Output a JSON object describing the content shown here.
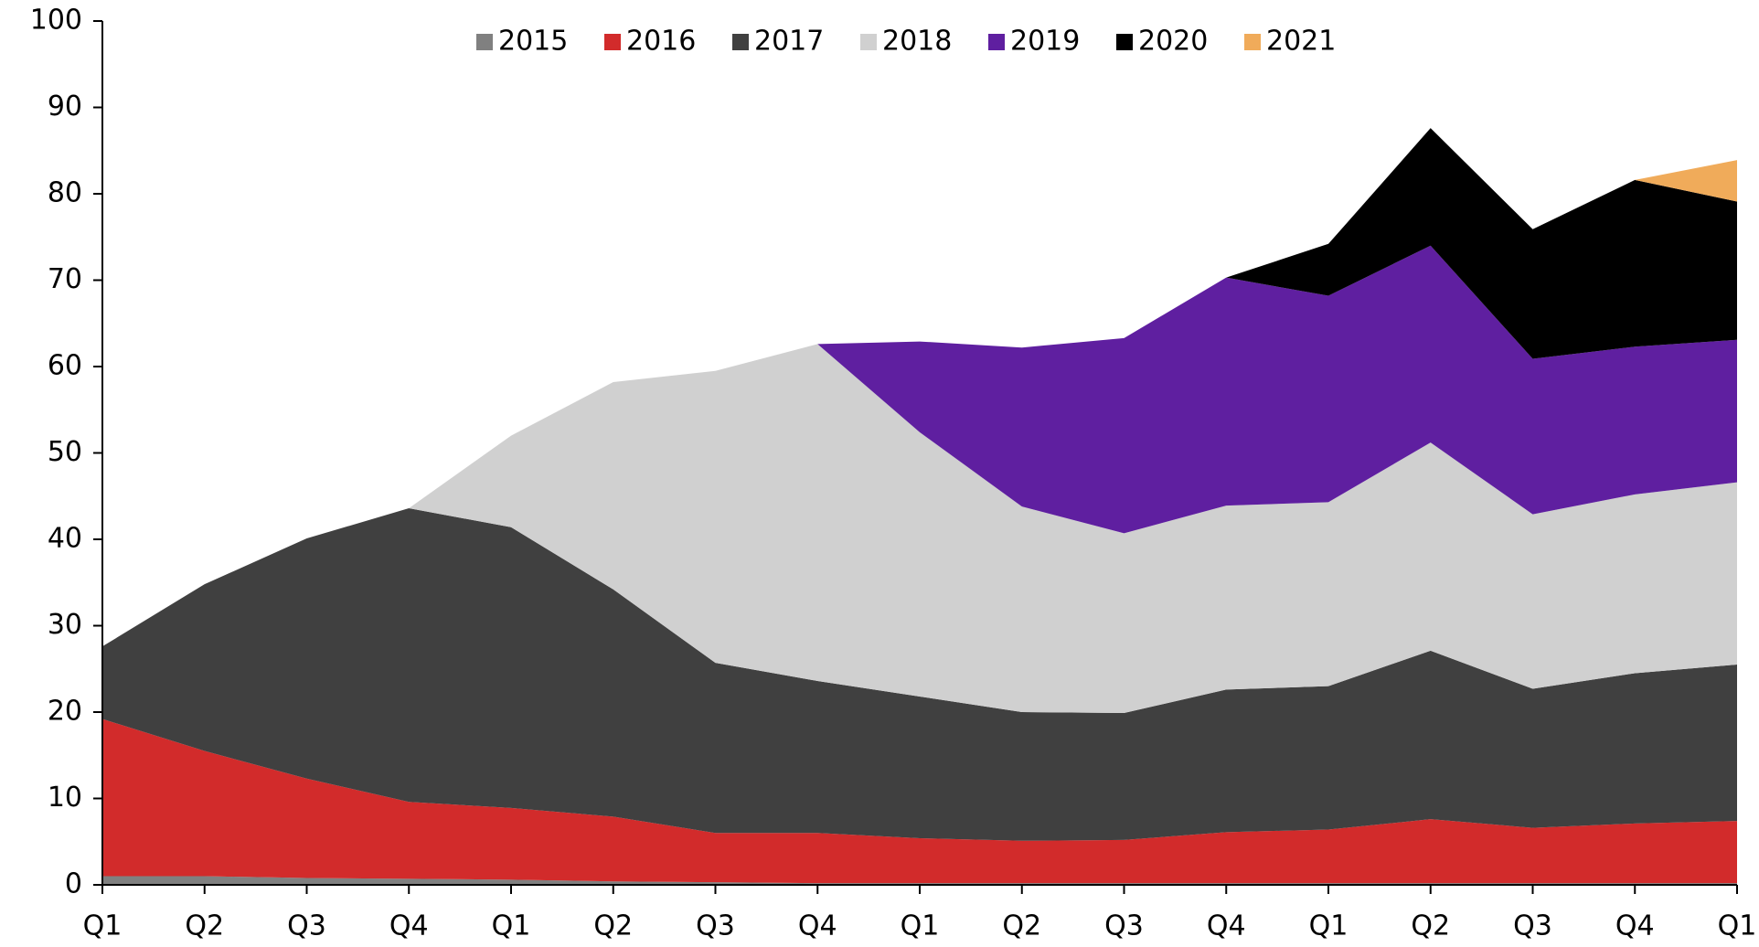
{
  "chart_data": {
    "type": "stacked-area",
    "categories": [
      "Q1",
      "Q2",
      "Q3",
      "Q4",
      "Q1",
      "Q2",
      "Q3",
      "Q4",
      "Q1",
      "Q2",
      "Q3",
      "Q4",
      "Q1",
      "Q2",
      "Q3",
      "Q4",
      "Q1"
    ],
    "series": [
      {
        "name": "2015",
        "color": "#808080",
        "values": [
          1.0,
          1.0,
          0.8,
          0.7,
          0.6,
          0.4,
          0.3,
          0.2,
          0.2,
          0.2,
          0.2,
          0.2,
          0.2,
          0.2,
          0.2,
          0.2,
          0.2
        ]
      },
      {
        "name": "2016",
        "color": "#d22b2b",
        "values": [
          18.2,
          14.5,
          11.5,
          8.9,
          8.3,
          7.5,
          5.7,
          5.8,
          5.2,
          4.9,
          5.0,
          5.9,
          6.2,
          7.4,
          6.4,
          6.9,
          7.2
        ]
      },
      {
        "name": "2017",
        "color": "#404040",
        "values": [
          8.4,
          19.3,
          27.8,
          34.0,
          32.5,
          26.3,
          19.7,
          17.6,
          16.4,
          14.9,
          14.7,
          16.5,
          16.6,
          19.5,
          16.1,
          17.4,
          18.1
        ]
      },
      {
        "name": "2018",
        "color": "#d0d0d0",
        "values": [
          0,
          0,
          0,
          0,
          10.6,
          24.0,
          33.8,
          39.0,
          30.6,
          23.8,
          20.8,
          21.3,
          21.3,
          24.1,
          20.2,
          20.7,
          21.1
        ]
      },
      {
        "name": "2019",
        "color": "#5f1fa0",
        "values": [
          0,
          0,
          0,
          0,
          0,
          0,
          0,
          0,
          10.5,
          18.4,
          22.6,
          26.4,
          23.9,
          22.8,
          18.0,
          17.1,
          16.5
        ]
      },
      {
        "name": "2020",
        "color": "#000000",
        "values": [
          0,
          0,
          0,
          0,
          0,
          0,
          0,
          0,
          0,
          0,
          0,
          0,
          6.0,
          13.6,
          15.0,
          19.3,
          16.0
        ]
      },
      {
        "name": "2021",
        "color": "#f0ab5a",
        "values": [
          0,
          0,
          0,
          0,
          0,
          0,
          0,
          0,
          0,
          0,
          0,
          0,
          0,
          0,
          0,
          0,
          4.8
        ]
      }
    ],
    "ylim": [
      0,
      100
    ],
    "yticks": [
      0,
      10,
      20,
      30,
      40,
      50,
      60,
      70,
      80,
      90,
      100
    ],
    "legend": "top"
  }
}
